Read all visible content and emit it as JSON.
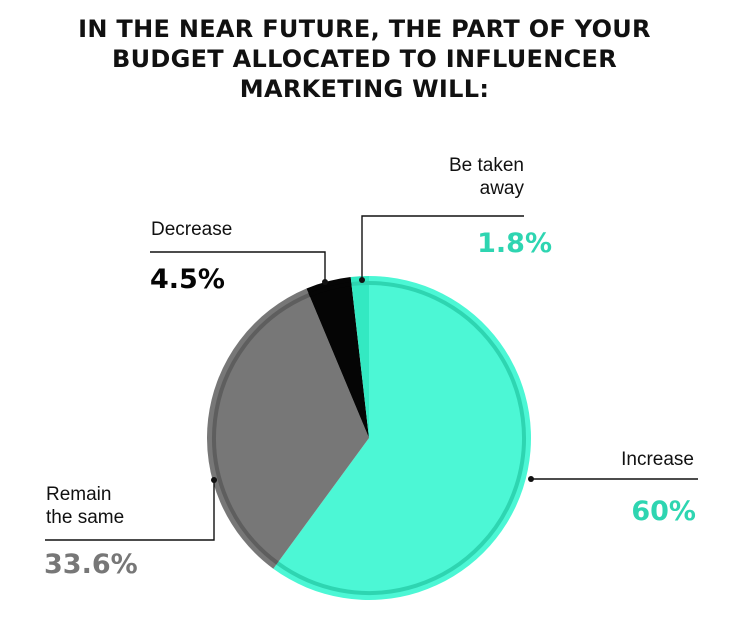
{
  "title_lines": [
    "IN THE NEAR FUTURE, THE PART OF YOUR",
    "BUDGET ALLOCATED TO INFLUENCER",
    "MARKETING WILL:"
  ],
  "colors": {
    "increase": "#4cf7d5",
    "increase_ring": "#2ed5b1",
    "remain": "#777777",
    "remain_ring": "#5e5e5e",
    "decrease": "#050505",
    "taken_away": "#33e9c2",
    "leader": "#111111"
  },
  "chart_data": {
    "type": "pie",
    "title": "IN THE NEAR FUTURE, THE PART OF YOUR BUDGET ALLOCATED TO INFLUENCER MARKETING WILL:",
    "start": "12 o'clock, clockwise",
    "slices": [
      {
        "key": "increase",
        "label": "Increase",
        "label_lines": [
          "Increase"
        ],
        "value": 60,
        "display": "60%"
      },
      {
        "key": "remain",
        "label": "Remain the same",
        "label_lines": [
          "Remain",
          "the same"
        ],
        "value": 33.6,
        "display": "33.6%"
      },
      {
        "key": "decrease",
        "label": "Decrease",
        "label_lines": [
          "Decrease"
        ],
        "value": 4.5,
        "display": "4.5%"
      },
      {
        "key": "taken_away",
        "label": "Be taken away",
        "label_lines": [
          "Be taken",
          "away"
        ],
        "value": 1.8,
        "display": "1.8%"
      }
    ]
  }
}
